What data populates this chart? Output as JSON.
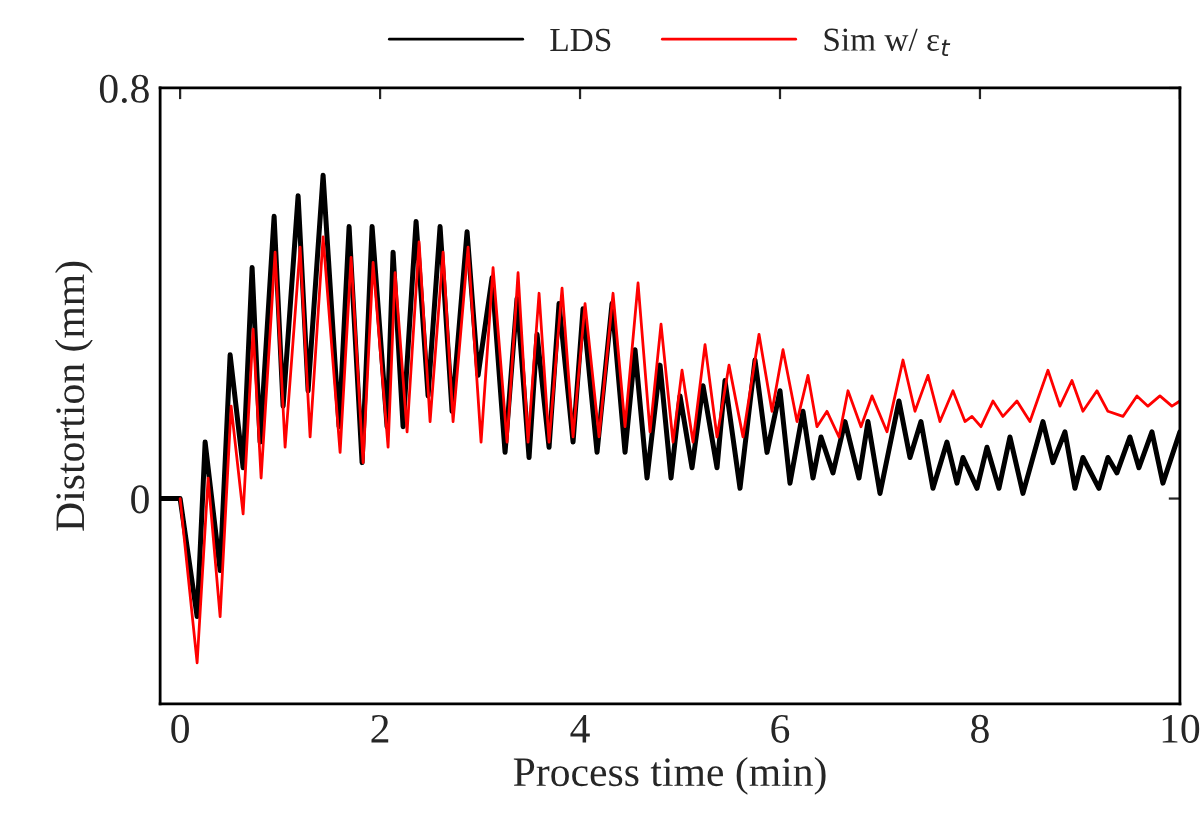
{
  "chart_data": {
    "type": "line",
    "xlabel": "Process time (min)",
    "ylabel": "Distortion (mm)",
    "xlim": [
      -0.2,
      10
    ],
    "ylim": [
      -0.4,
      0.8
    ],
    "xticks": [
      0,
      2,
      4,
      6,
      8,
      10
    ],
    "yticks": [
      0,
      0.8
    ],
    "grid": false,
    "legend": "top",
    "marker": "none",
    "line_style": "solid",
    "series": [
      {
        "name": "LDS",
        "color": "#000000",
        "x": [
          -0.2,
          0,
          0.17,
          0.25,
          0.4,
          0.5,
          0.63,
          0.72,
          0.8,
          0.94,
          1.03,
          1.18,
          1.28,
          1.43,
          1.59,
          1.69,
          1.82,
          1.92,
          2.07,
          2.13,
          2.23,
          2.36,
          2.48,
          2.6,
          2.72,
          2.87,
          2.98,
          3.12,
          3.25,
          3.37,
          3.49,
          3.57,
          3.69,
          3.79,
          3.93,
          4.03,
          4.17,
          4.32,
          4.45,
          4.55,
          4.67,
          4.8,
          4.91,
          5.0,
          5.12,
          5.23,
          5.37,
          5.45,
          5.6,
          5.75,
          5.87,
          6.0,
          6.1,
          6.23,
          6.33,
          6.41,
          6.53,
          6.65,
          6.79,
          6.88,
          7.0,
          7.19,
          7.3,
          7.41,
          7.53,
          7.67,
          7.77,
          7.83,
          7.97,
          8.07,
          8.19,
          8.3,
          8.43,
          8.63,
          8.73,
          8.85,
          8.95,
          9.03,
          9.19,
          9.28,
          9.37,
          9.5,
          9.59,
          9.72,
          9.83,
          10
        ],
        "values": [
          0,
          0,
          -0.23,
          0.11,
          -0.14,
          0.28,
          0.06,
          0.45,
          0.11,
          0.55,
          0.18,
          0.59,
          0.21,
          0.63,
          0.14,
          0.53,
          0.07,
          0.53,
          0.14,
          0.48,
          0.14,
          0.54,
          0.2,
          0.53,
          0.17,
          0.52,
          0.24,
          0.43,
          0.09,
          0.39,
          0.08,
          0.32,
          0.1,
          0.38,
          0.11,
          0.37,
          0.09,
          0.38,
          0.09,
          0.29,
          0.04,
          0.26,
          0.04,
          0.2,
          0.06,
          0.22,
          0.06,
          0.23,
          0.02,
          0.27,
          0.09,
          0.21,
          0.03,
          0.17,
          0.04,
          0.12,
          0.05,
          0.15,
          0.04,
          0.15,
          0.01,
          0.19,
          0.08,
          0.15,
          0.02,
          0.11,
          0.03,
          0.08,
          0.02,
          0.1,
          0.02,
          0.12,
          0.01,
          0.15,
          0.07,
          0.13,
          0.02,
          0.08,
          0.02,
          0.08,
          0.05,
          0.12,
          0.06,
          0.13,
          0.03,
          0.13
        ]
      },
      {
        "name": "Sim w/ ε$_{t}$",
        "color": "#ff0000",
        "x": [
          0,
          0.17,
          0.28,
          0.4,
          0.51,
          0.63,
          0.73,
          0.81,
          0.95,
          1.05,
          1.2,
          1.3,
          1.43,
          1.6,
          1.71,
          1.83,
          1.93,
          2.08,
          2.15,
          2.27,
          2.39,
          2.5,
          2.63,
          2.73,
          2.88,
          3.01,
          3.13,
          3.27,
          3.38,
          3.48,
          3.59,
          3.69,
          3.82,
          3.93,
          4.05,
          4.19,
          4.33,
          4.45,
          4.58,
          4.7,
          4.81,
          4.93,
          5.02,
          5.13,
          5.25,
          5.37,
          5.49,
          5.63,
          5.79,
          5.92,
          6.03,
          6.17,
          6.28,
          6.37,
          6.47,
          6.59,
          6.68,
          6.81,
          6.92,
          7.07,
          7.23,
          7.35,
          7.48,
          7.6,
          7.73,
          7.85,
          7.92,
          8.01,
          8.13,
          8.23,
          8.37,
          8.5,
          8.68,
          8.8,
          8.92,
          9.03,
          9.17,
          9.28,
          9.43,
          9.57,
          9.68,
          9.8,
          9.92,
          10
        ],
        "values": [
          0,
          -0.32,
          0.04,
          -0.23,
          0.18,
          -0.03,
          0.33,
          0.04,
          0.48,
          0.1,
          0.49,
          0.12,
          0.51,
          0.09,
          0.47,
          0.07,
          0.46,
          0.1,
          0.44,
          0.13,
          0.5,
          0.15,
          0.48,
          0.15,
          0.49,
          0.11,
          0.45,
          0.11,
          0.44,
          0.11,
          0.4,
          0.11,
          0.41,
          0.12,
          0.38,
          0.12,
          0.4,
          0.14,
          0.42,
          0.13,
          0.34,
          0.11,
          0.25,
          0.11,
          0.3,
          0.12,
          0.26,
          0.12,
          0.32,
          0.17,
          0.29,
          0.15,
          0.24,
          0.14,
          0.17,
          0.12,
          0.21,
          0.14,
          0.2,
          0.13,
          0.27,
          0.17,
          0.24,
          0.15,
          0.21,
          0.15,
          0.16,
          0.14,
          0.19,
          0.16,
          0.19,
          0.15,
          0.25,
          0.18,
          0.23,
          0.17,
          0.21,
          0.17,
          0.16,
          0.2,
          0.18,
          0.2,
          0.18,
          0.19
        ]
      }
    ]
  }
}
